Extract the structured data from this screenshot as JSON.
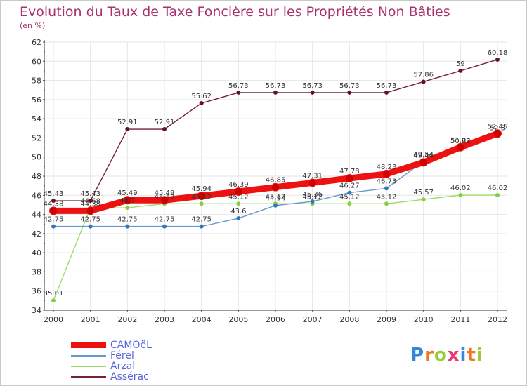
{
  "title": "Evolution du Taux de Taxe Foncière sur les Propriétés Non Bâties",
  "unit_label": "(en %)",
  "colors": {
    "title": "#a8326e",
    "grid": "#e6e6e6",
    "axis_tick": "#cc3333",
    "legend_text": "#5566dd"
  },
  "legend": [
    {
      "label": "CAMOëL",
      "color": "#ee1111"
    },
    {
      "label": "Férel",
      "color": "#6699cc"
    },
    {
      "label": "Arzal",
      "color": "#99dd66"
    },
    {
      "label": "Assérac",
      "color": "#772233"
    }
  ],
  "logo": {
    "text": "Proxiti",
    "letter_colors": [
      "#3388dd",
      "#ee7722",
      "#99cc33",
      "#ee3377",
      "#3388dd",
      "#ee7722",
      "#99cc33"
    ]
  },
  "chart_data": {
    "type": "line",
    "title": "Evolution du Taux de Taxe Foncière sur les Propriétés Non Bâties",
    "ylabel": "(en %)",
    "xlabel": "",
    "ylim": [
      34,
      62
    ],
    "yticks": [
      34,
      36,
      38,
      40,
      42,
      44,
      46,
      48,
      50,
      52,
      54,
      56,
      58,
      60,
      62
    ],
    "categories": [
      "2000",
      "2001",
      "2002",
      "2003",
      "2004",
      "2005",
      "2006",
      "2007",
      "2008",
      "2009",
      "2010",
      "2011",
      "2012"
    ],
    "series": [
      {
        "name": "Assérac",
        "color": "#772233",
        "marker": "#661122",
        "values": [
          45.43,
          45.43,
          52.91,
          52.91,
          55.62,
          56.73,
          56.73,
          56.73,
          56.73,
          56.73,
          57.86,
          59,
          60.18
        ],
        "labels": [
          "45.43",
          "45.43",
          "52.91",
          "52.91",
          "55.62",
          "56.73",
          "56.73",
          "56.73",
          "56.73",
          "56.73",
          "57.86",
          "59",
          "60.18"
        ]
      },
      {
        "name": "Arzal",
        "color": "#99dd66",
        "marker": "#88cc44",
        "values": [
          35.01,
          44.68,
          44.7,
          45.12,
          45.12,
          45.12,
          45.12,
          45.12,
          45.12,
          45.12,
          45.57,
          46.02,
          46.02
        ],
        "labels": [
          "35.01",
          "44.68",
          "44.7",
          "45.12",
          "45.12",
          "45.12",
          "45.12",
          "45.12",
          "45.12",
          "45.12",
          "45.57",
          "46.02",
          "46.02"
        ]
      },
      {
        "name": "Férel",
        "color": "#6699cc",
        "marker": "#3377bb",
        "values": [
          42.75,
          42.75,
          42.75,
          42.75,
          42.75,
          43.6,
          44.94,
          45.36,
          46.27,
          46.73,
          49.54,
          50.92,
          52.3
        ],
        "labels": [
          "42.75",
          "42.75",
          "42.75",
          "42.75",
          "42.75",
          "43.6",
          "44.94",
          "45.36",
          "46.27",
          "46.73",
          "49.54",
          "50.92",
          "52.3"
        ]
      },
      {
        "name": "CAMOëL",
        "color": "#ee1111",
        "marker": "#cc0000",
        "values": [
          44.38,
          44.38,
          45.49,
          45.49,
          45.94,
          46.39,
          46.85,
          47.31,
          47.78,
          48.23,
          49.44,
          51.02,
          52.45
        ],
        "labels": [
          "44.38",
          "44.38",
          "45.49",
          "45.49",
          "45.94",
          "46.39",
          "46.85",
          "47.31",
          "47.78",
          "48.23",
          "49.44",
          "51.02",
          "52.45"
        ]
      }
    ]
  }
}
